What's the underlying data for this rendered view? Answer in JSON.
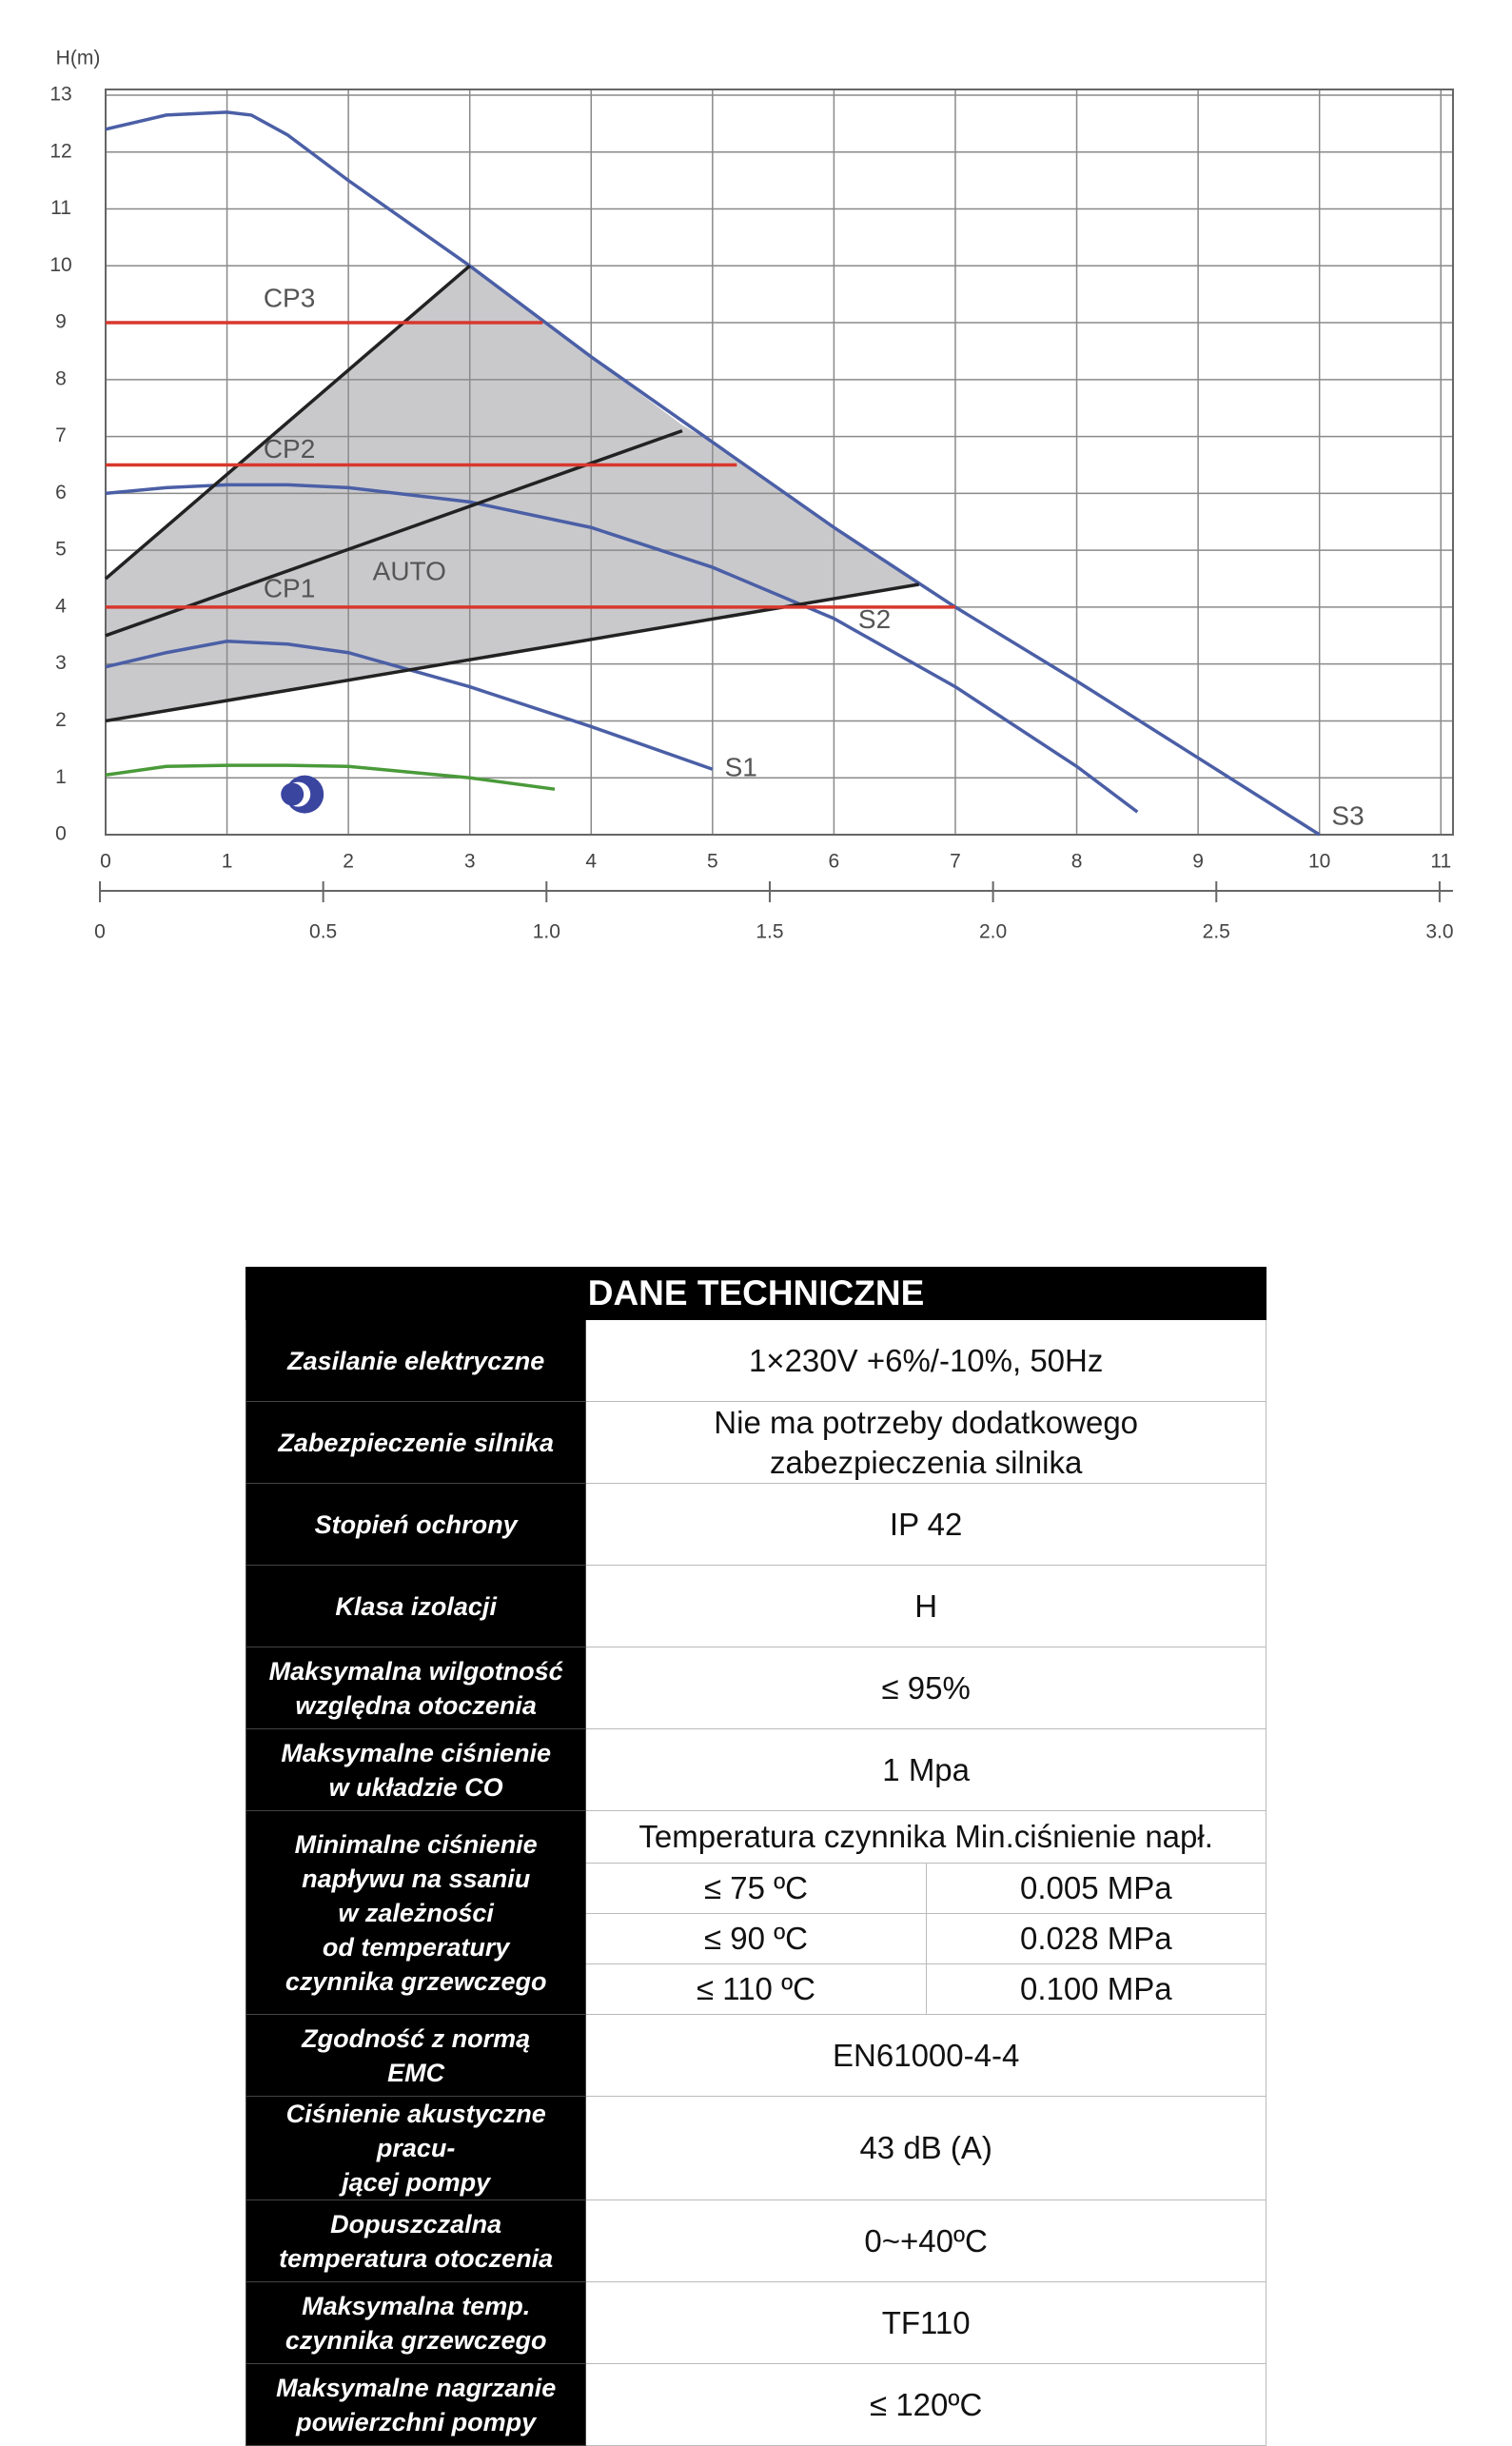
{
  "chart_data": {
    "type": "line",
    "y_label": "H(m)",
    "xlim": [
      0,
      11.1
    ],
    "ylim": [
      0,
      13.1
    ],
    "xticks": [
      0,
      1,
      2,
      3,
      4,
      5,
      6,
      7,
      8,
      9,
      10,
      11
    ],
    "yticks": [
      0,
      1,
      2,
      3,
      4,
      5,
      6,
      7,
      8,
      9,
      10,
      11,
      12,
      13
    ],
    "x2lim": [
      0,
      3.03
    ],
    "x2ticks": [
      0,
      0.5,
      {
        "value": 1,
        "label": "1.0"
      },
      1.5,
      {
        "value": 2,
        "label": "2.0"
      },
      2.5,
      {
        "value": 3,
        "label": "3.0"
      }
    ],
    "grid": true,
    "area": {
      "color": "#c9c9cc",
      "x": [
        0,
        3,
        4,
        4.75,
        5,
        6,
        6.7,
        0
      ],
      "y": [
        4.5,
        10,
        8.4,
        7.2,
        6.9,
        5.4,
        4.4,
        2
      ]
    },
    "annotations": [
      "AUTO"
    ],
    "series": [
      {
        "name": "S3",
        "color": "#4b5fa6",
        "x": [
          0,
          0.5,
          1,
          1.2,
          1.5,
          2,
          3,
          4,
          5,
          6,
          7,
          8,
          9,
          10
        ],
        "values": [
          12.4,
          12.65,
          12.7,
          12.65,
          12.3,
          11.5,
          10,
          8.4,
          6.9,
          5.4,
          4,
          2.7,
          1.35,
          0
        ]
      },
      {
        "name": "S2",
        "color": "#4b5fa6",
        "x": [
          0,
          0.5,
          1,
          1.5,
          2,
          3,
          4,
          5,
          6,
          7,
          8,
          8.5
        ],
        "values": [
          6,
          6.1,
          6.15,
          6.15,
          6.1,
          5.85,
          5.4,
          4.7,
          3.8,
          2.6,
          1.2,
          0.4
        ]
      },
      {
        "name": "S1",
        "color": "#4b5fa6",
        "x": [
          0,
          0.5,
          1,
          1.5,
          2,
          3,
          4,
          5
        ],
        "values": [
          2.95,
          3.2,
          3.4,
          3.35,
          3.2,
          2.6,
          1.9,
          1.15
        ]
      },
      {
        "color": "#4a9a3a",
        "x": [
          0,
          0.5,
          1,
          1.5,
          2,
          3,
          3.7
        ],
        "values": [
          1.05,
          1.2,
          1.22,
          1.22,
          1.2,
          1.0,
          0.8
        ]
      },
      {
        "color": "#222222",
        "x": [
          0,
          3
        ],
        "values": [
          4.5,
          10
        ]
      },
      {
        "color": "#222222",
        "x": [
          0,
          4.75
        ],
        "values": [
          3.5,
          7.1
        ]
      },
      {
        "color": "#222222",
        "x": [
          0,
          6.7
        ],
        "values": [
          2,
          4.4
        ]
      },
      {
        "name": "CP3",
        "color": "#d8382e",
        "x": [
          0,
          3.6
        ],
        "values": [
          9,
          9
        ]
      },
      {
        "name": "CP2",
        "color": "#d8382e",
        "x": [
          0,
          5.2
        ],
        "values": [
          6.5,
          6.5
        ]
      },
      {
        "name": "CP1",
        "color": "#d8382e",
        "x": [
          0,
          7
        ],
        "values": [
          4,
          4
        ]
      }
    ]
  },
  "table": {
    "title": "DANE TECHNICZNE",
    "rows": [
      [
        "Zasilanie elektryczne",
        "1×230V +6%/-10%, 50Hz"
      ],
      [
        "Zabezpieczenie silnika",
        "Nie ma potrzeby dodatkowego\nzabezpieczenia silnika"
      ],
      [
        "Stopień ochrony",
        "IP 42"
      ],
      [
        "Klasa izolacji",
        "H"
      ],
      [
        "Maksymalna wilgotność\nwzględna otoczenia",
        "≤ 95%"
      ],
      [
        "Maksymalne ciśnienie\nw układzie CO",
        "1 Mpa"
      ],
      [
        "Minimalne ciśnienie\nnapływu na ssaniu\nw zależności\nod temperatury\nczynnika grzewczego",
        {
          "header": "Temperatura czynnika Min.ciśnienie napł.",
          "rows": [
            [
              "≤ 75 ºC",
              "0.005 MPa"
            ],
            [
              "≤ 90 ºC",
              "0.028 MPa"
            ],
            [
              "≤ 110 ºC",
              "0.100 MPa"
            ]
          ]
        }
      ],
      [
        "Zgodność z normą\nEMC",
        "EN61000-4-4"
      ],
      [
        "Ciśnienie akustyczne pracu-\njącej pompy",
        "43 dB (A)"
      ],
      [
        "Dopuszczalna\ntemperatura otoczenia",
        "0~+40ºC"
      ],
      [
        "Maksymalna temp.\nczynnika grzewczego",
        "TF110"
      ],
      [
        "Maksymalne nagrzanie\npowierzchni pompy",
        "≤ 120ºC"
      ]
    ]
  }
}
